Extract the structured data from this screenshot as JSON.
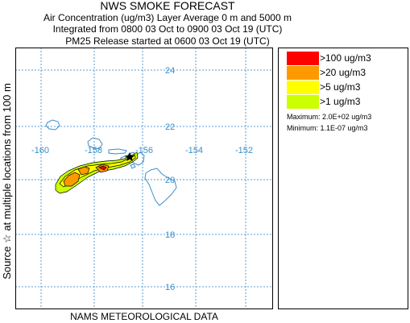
{
  "title": "NWS SMOKE FORECAST",
  "subtitle_1": "Air Concentration (ug/m3) Layer Average    0 m and  5000 m",
  "subtitle_2": "Integrated from 0800 03 Oct to 0900 03 Oct 19 (UTC)",
  "subtitle_3": "PM25 Release started at 0600 03 Oct 19 (UTC)",
  "side_label": "Source ☆   at multiple locations   from   100 m",
  "footer": "NAMS METEOROLOGICAL DATA",
  "map": {
    "lon_labels": [
      "-160",
      "-158",
      "-156",
      "-154",
      "-152"
    ],
    "lat_labels": [
      "24",
      "22",
      "20",
      "18",
      "16"
    ],
    "grid_color": "#5a9bd5",
    "coast_color": "#3a8fc8"
  },
  "legend": {
    "items": [
      {
        "label": ">100 ug/m3",
        "color": "#ff0000"
      },
      {
        "label": ">20 ug/m3",
        "color": "#ff9900"
      },
      {
        "label": ">5 ug/m3",
        "color": "#ffff00"
      },
      {
        "label": ">1 ug/m3",
        "color": "#ccff00"
      }
    ],
    "maximum": "Maximum: 2.0E+02 ug/m3",
    "minimum": "Minimum: 1.1E-07 ug/m3"
  }
}
